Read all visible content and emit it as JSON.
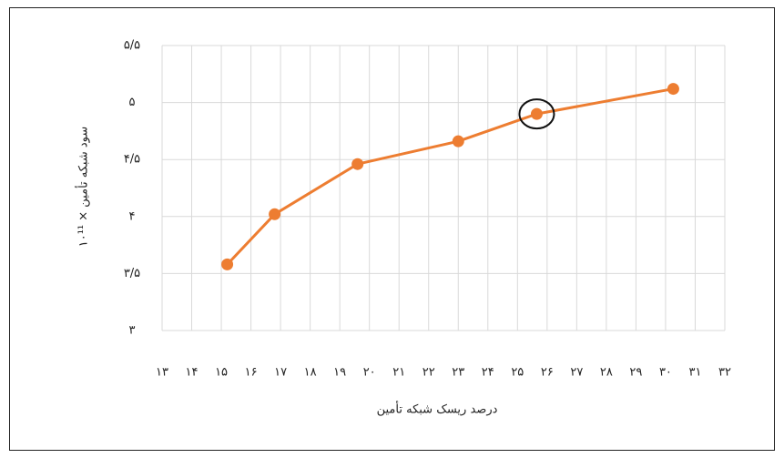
{
  "chart_data": {
    "type": "line",
    "x_label": "درصد ریسک شبکه تأمین",
    "y_label": "سود شبکه تأمین × ۱۰¹¹",
    "x": [
      15.2,
      16.8,
      19.6,
      23.0,
      25.65,
      30.26
    ],
    "series": [
      {
        "color": "#ed7d31",
        "values": [
          3.58,
          4.02,
          4.46,
          4.66,
          4.9,
          5.12
        ]
      }
    ],
    "highlighted_point": 4,
    "xlim": [
      13,
      32
    ],
    "xticks": [
      {
        "value": 13,
        "label": "۱۳"
      },
      {
        "value": 14,
        "label": "۱۴"
      },
      {
        "value": 15,
        "label": "۱۵"
      },
      {
        "value": 16,
        "label": "۱۶"
      },
      {
        "value": 17,
        "label": "۱۷"
      },
      {
        "value": 18,
        "label": "۱۸"
      },
      {
        "value": 19,
        "label": "۱۹"
      },
      {
        "value": 20,
        "label": "۲۰"
      },
      {
        "value": 21,
        "label": "۲۱"
      },
      {
        "value": 22,
        "label": "۲۲"
      },
      {
        "value": 23,
        "label": "۲۳"
      },
      {
        "value": 24,
        "label": "۲۴"
      },
      {
        "value": 25,
        "label": "۲۵"
      },
      {
        "value": 26,
        "label": "۲۶"
      },
      {
        "value": 27,
        "label": "۲۷"
      },
      {
        "value": 28,
        "label": "۲۸"
      },
      {
        "value": 29,
        "label": "۲۹"
      },
      {
        "value": 30,
        "label": "۳۰"
      },
      {
        "value": 31,
        "label": "۳۱"
      },
      {
        "value": 32,
        "label": "۳۲"
      }
    ],
    "ylim": [
      3,
      5.5
    ],
    "yticks": [
      {
        "value": 3,
        "label": "۳"
      },
      {
        "value": 3.5,
        "label": "۳/۵"
      },
      {
        "value": 4,
        "label": "۴"
      },
      {
        "value": 4.5,
        "label": "۴/۵"
      },
      {
        "value": 5,
        "label": "۵"
      },
      {
        "value": 5.5,
        "label": "۵/۵"
      }
    ],
    "grid": true
  }
}
